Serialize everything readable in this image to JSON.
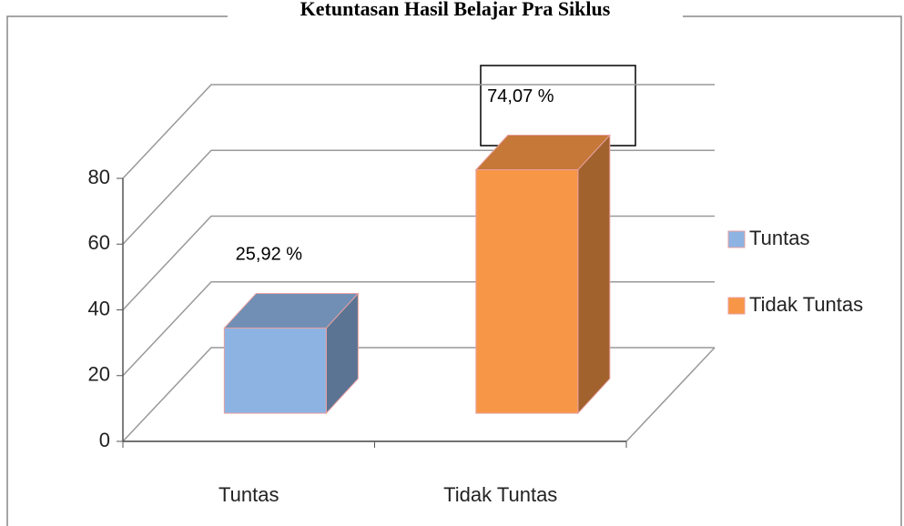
{
  "chart_data": {
    "type": "bar3d",
    "title": "Ketuntasan Hasil Belajar Pra Siklus",
    "categories": [
      "Tuntas",
      "Tidak Tuntas"
    ],
    "values": [
      25.92,
      74.07
    ],
    "value_labels": [
      "25,92 %",
      "74,07 %"
    ],
    "colors": [
      "#8db3e2",
      "#f79646"
    ],
    "ylim": [
      0,
      80
    ],
    "yticks": [
      0,
      20,
      40,
      60,
      80
    ],
    "grid": true,
    "legend": "right"
  }
}
